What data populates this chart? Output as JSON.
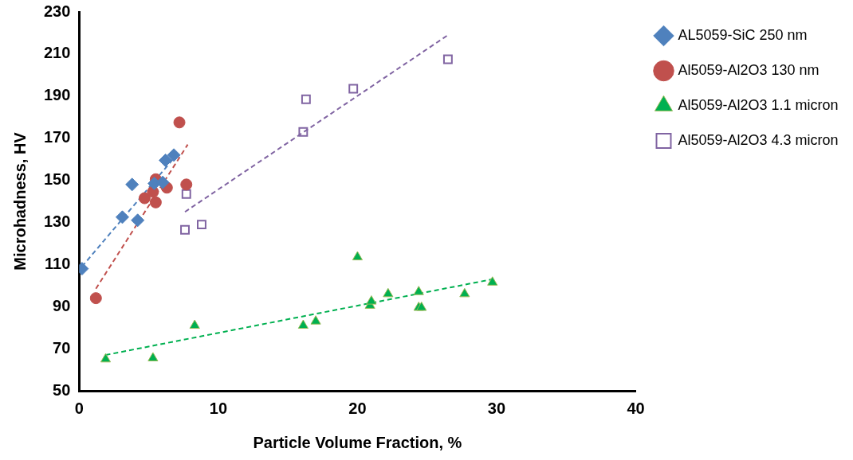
{
  "chart_data": {
    "type": "scatter",
    "xlabel": "Particle Volume Fraction, %",
    "ylabel": "Microhadness, HV",
    "xlim": [
      0,
      40
    ],
    "xticks": [
      0,
      10,
      20,
      30,
      40
    ],
    "ylim": [
      50,
      230
    ],
    "yticks": [
      50,
      70,
      90,
      110,
      130,
      150,
      170,
      190,
      210,
      230
    ],
    "grid": false,
    "legend": "right",
    "series": [
      {
        "name": "AL5059-SiC 250 nm",
        "color": "#4f81bd",
        "marker": "diamond",
        "x": [
          0.2,
          3.1,
          3.8,
          4.2,
          5.4,
          6.0,
          6.2,
          6.8
        ],
        "values": [
          108,
          132.5,
          148,
          131,
          148.5,
          149,
          159.5,
          162
        ]
      },
      {
        "name": "Al5059-Al2O3 130 nm",
        "color": "#c0504d",
        "marker": "circle",
        "x": [
          1.2,
          4.7,
          5.5,
          5.3,
          5.5,
          6.3,
          7.2,
          7.7
        ],
        "values": [
          94,
          141.5,
          150.5,
          144.5,
          139.5,
          146.5,
          177.5,
          148
        ]
      },
      {
        "name": "Al5059-Al2O3 1.1 micron",
        "color": "#00b050",
        "marker": "triangle",
        "x": [
          1.9,
          5.3,
          8.3,
          16.1,
          17.0,
          20.0,
          20.9,
          21.0,
          22.2,
          24.4,
          24.4,
          24.6,
          27.7,
          29.7
        ],
        "values": [
          65,
          65.5,
          81,
          81,
          83,
          113.5,
          90.5,
          92.5,
          96,
          97,
          89.5,
          89.5,
          96,
          101.5
        ]
      },
      {
        "name": "Al5059-Al2O3 4.3 micron",
        "color": "#8064a2",
        "marker": "square",
        "x": [
          7.7,
          7.6,
          8.8,
          16.3,
          16.1,
          19.7,
          26.5
        ],
        "values": [
          143.5,
          126.5,
          129,
          188.5,
          173,
          193.5,
          207.5
        ]
      },
      {
        "type": "line",
        "color": "#4f81bd",
        "marker": "none",
        "line_style": "dashed",
        "x": [
          0.2,
          6.8
        ],
        "values": [
          109,
          160.5
        ]
      },
      {
        "type": "line",
        "color": "#c0504d",
        "marker": "none",
        "line_style": "dashed",
        "x": [
          1.2,
          7.8
        ],
        "values": [
          98.5,
          167
        ]
      },
      {
        "type": "line",
        "color": "#00b050",
        "marker": "none",
        "line_style": "dashed",
        "x": [
          1.9,
          29.7
        ],
        "values": [
          67,
          103
        ]
      },
      {
        "type": "line",
        "color": "#8064a2",
        "marker": "none",
        "line_style": "dashed",
        "x": [
          7.6,
          26.5
        ],
        "values": [
          135,
          219
        ]
      }
    ]
  }
}
